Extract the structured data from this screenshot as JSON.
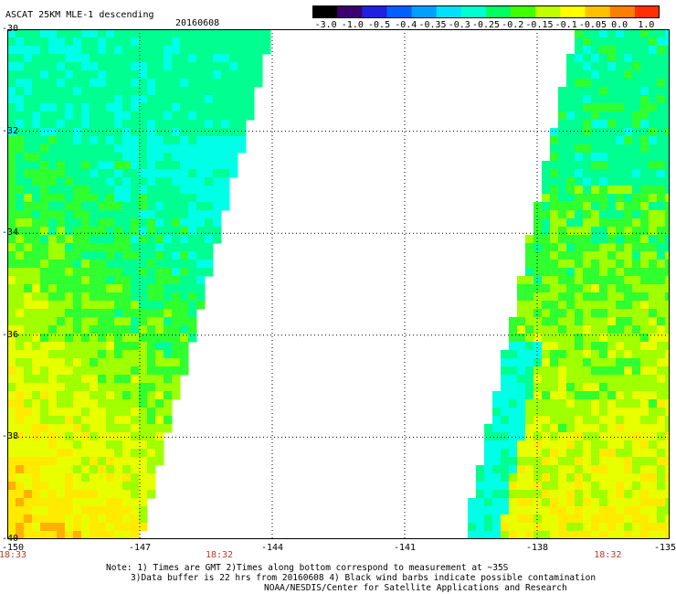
{
  "header": {
    "title": "ASCAT 25KM MLE-1 descending",
    "date": "20160608"
  },
  "colorbar": {
    "labels": [
      "-3.0",
      "-1.0",
      "-0.5",
      "-0.4",
      "-0.35",
      "-0.3",
      "-0.25",
      "-0.2",
      "-0.15",
      "-0.1",
      "-0.05",
      "0.0",
      "1.0"
    ],
    "colors": [
      "#000000",
      "#3a0070",
      "#2020e0",
      "#0060ff",
      "#00a0ff",
      "#00e0ff",
      "#00ffd0",
      "#00ff60",
      "#40ff00",
      "#c0ff00",
      "#ffff00",
      "#ffc000",
      "#ff8000",
      "#ff3000"
    ]
  },
  "map": {
    "lat_labels": [
      "-30",
      "-32",
      "-34",
      "-36",
      "-38",
      "-40"
    ],
    "lon_labels": [
      "-150",
      "-147",
      "-144",
      "-141",
      "-138",
      "-135"
    ],
    "lat_range": [
      -40,
      -30
    ],
    "lon_range": [
      -150,
      -135
    ],
    "time_labels": [
      {
        "text": "18:33",
        "lon": -150
      },
      {
        "text": "18:32",
        "lon": -145.2
      },
      {
        "text": "18:32",
        "lon": -136.4
      }
    ],
    "swath_colors": [
      "#00ffe6",
      "#00ff90",
      "#30ff30",
      "#a0ff00",
      "#e8ff00",
      "#ffea00",
      "#ffb000",
      "#ff8c00"
    ]
  },
  "notes": {
    "line1": "Note: 1) Times are GMT 2)Times along bottom correspond to measurement at ~35S",
    "line2": "3)Data buffer is 22 hrs from 20160608 4) Black wind barbs indicate possible contamination",
    "line3": "NOAA/NESDIS/Center for Satellite Applications and Research"
  }
}
